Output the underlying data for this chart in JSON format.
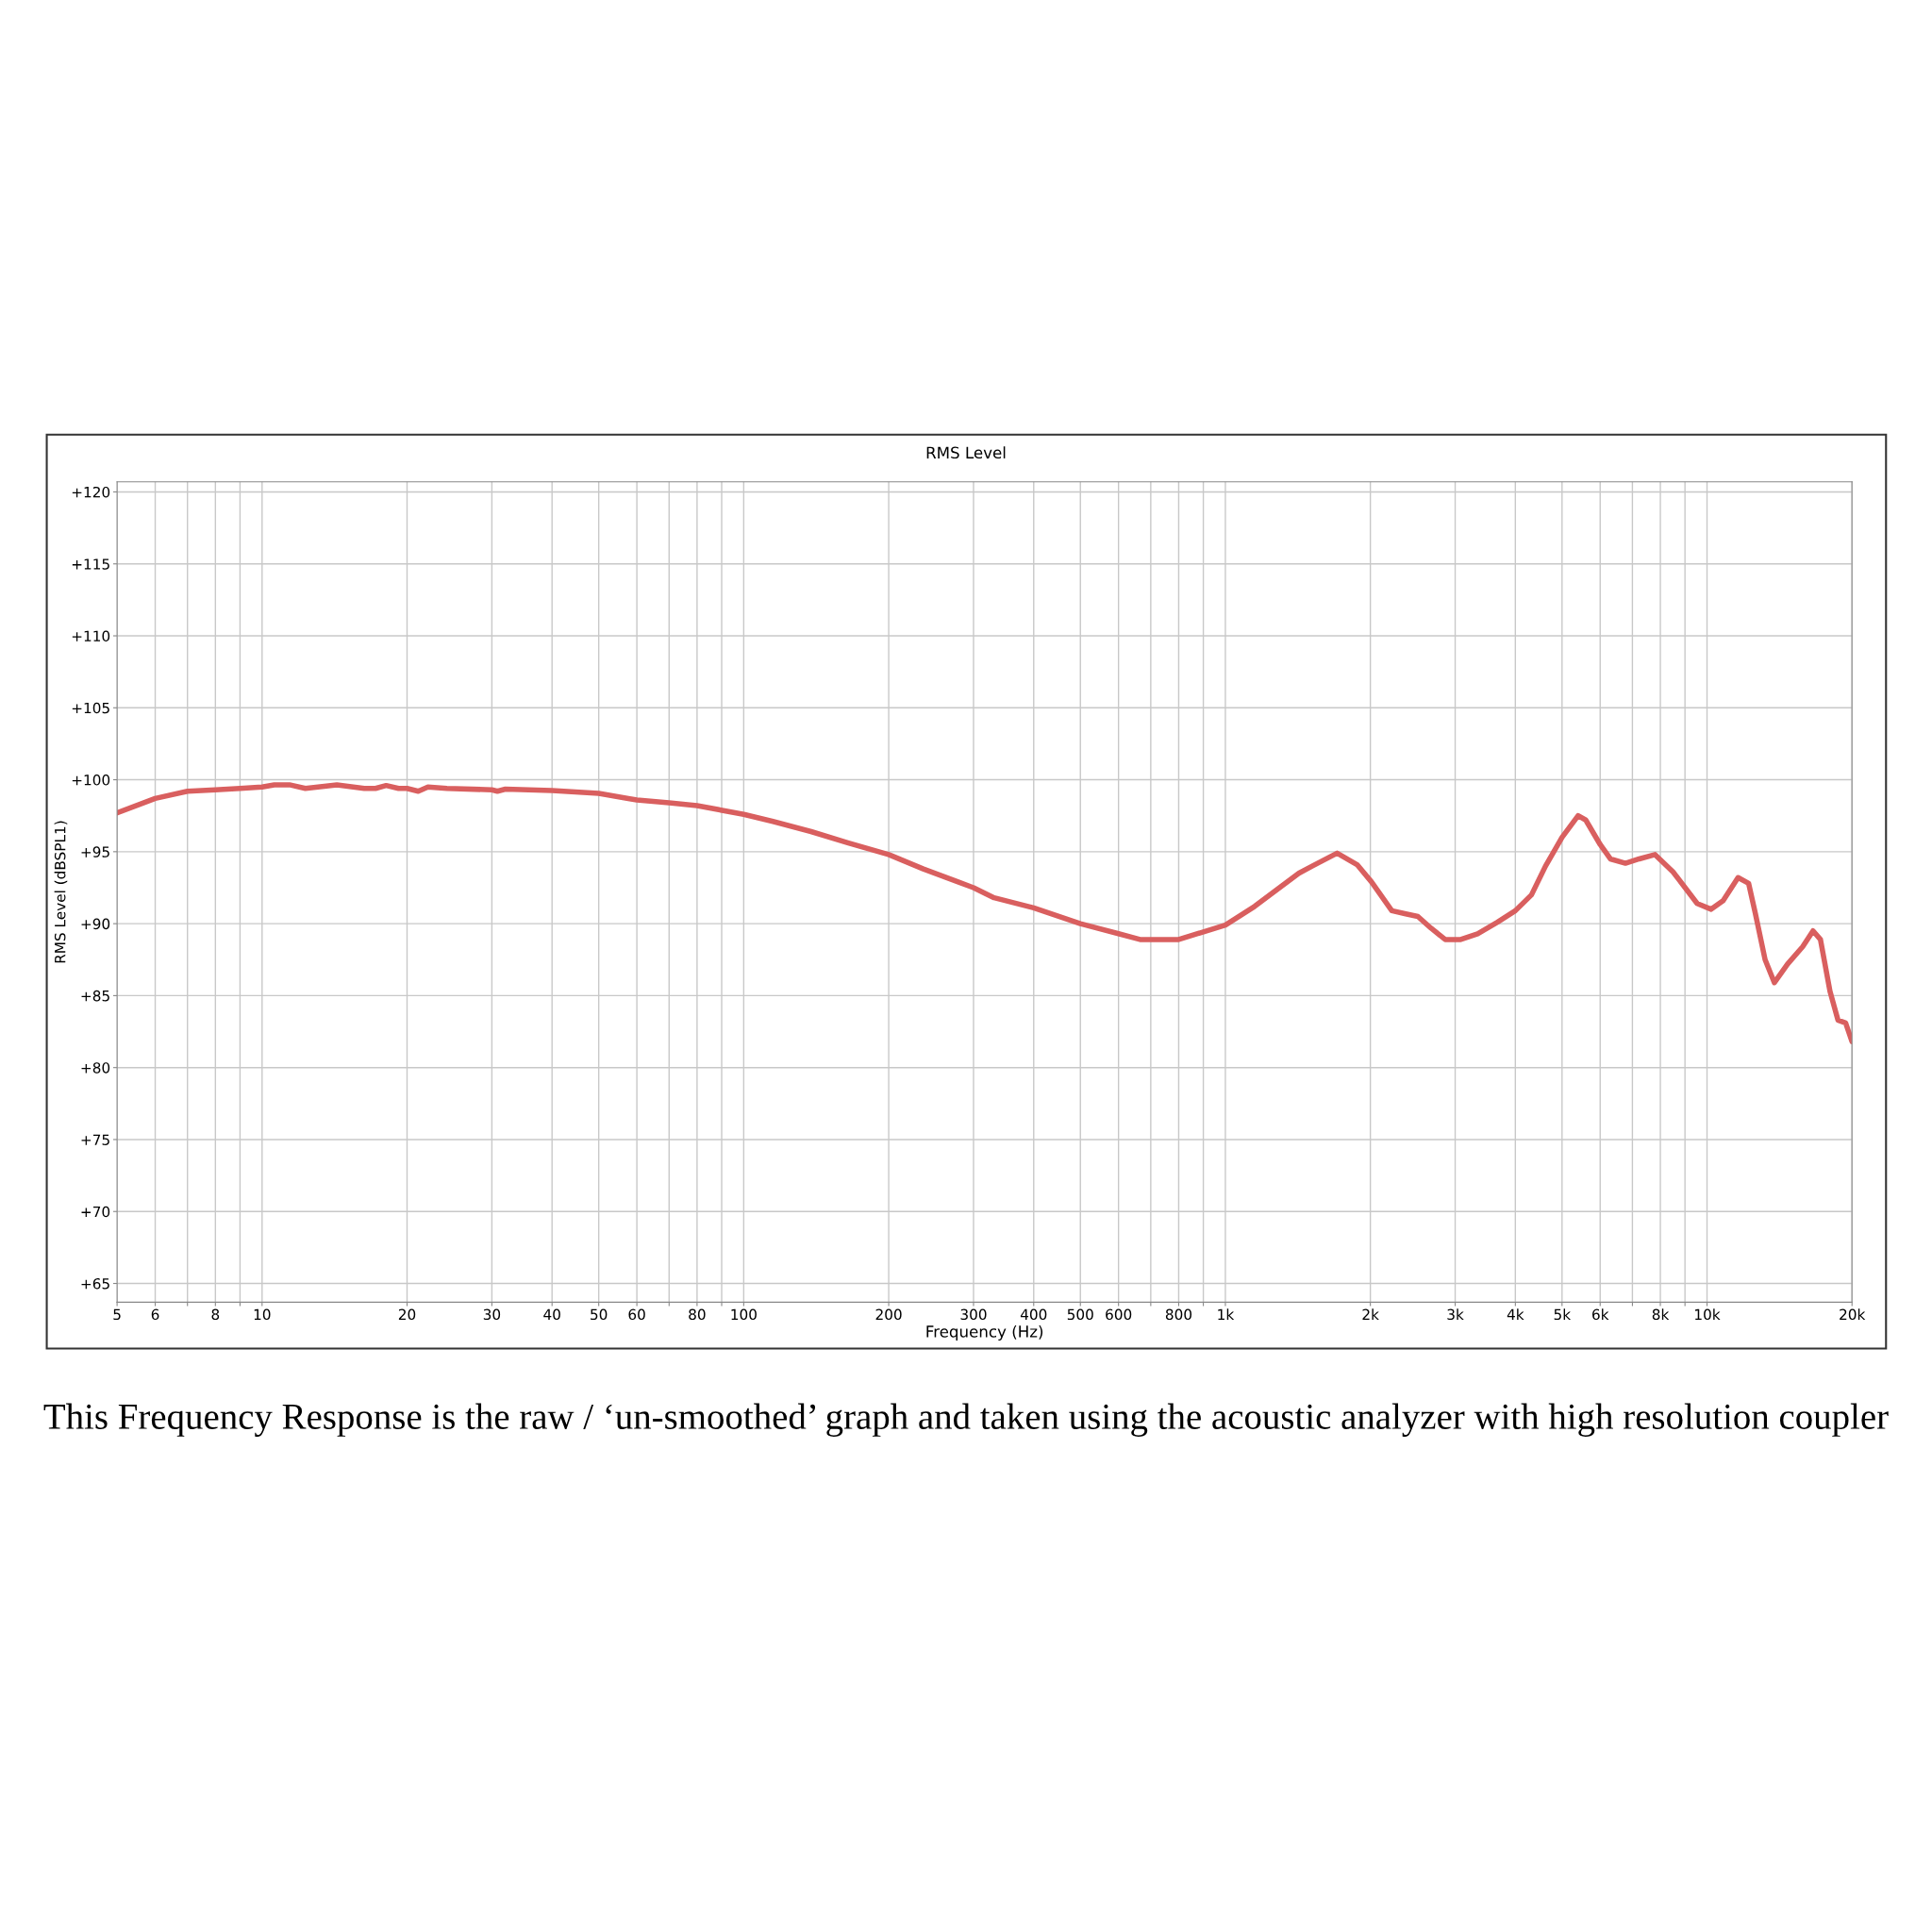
{
  "chart_data": {
    "type": "line",
    "title": "RMS Level",
    "xlabel": "Frequency (Hz)",
    "ylabel": "RMS Level (dBSPL1)",
    "log": "x",
    "grid": true,
    "legend": false,
    "marker": "none",
    "line_style": "solid",
    "xlim": [
      5,
      20000
    ],
    "ylim": [
      63.7,
      120.7
    ],
    "xticks": [
      5,
      6,
      {
        "value": 7,
        "label": null
      },
      8,
      {
        "value": 9,
        "label": null
      },
      10,
      20,
      30,
      40,
      50,
      60,
      {
        "value": 70,
        "label": null
      },
      80,
      {
        "value": 90,
        "label": null
      },
      100,
      200,
      300,
      400,
      500,
      600,
      {
        "value": 700,
        "label": null
      },
      800,
      {
        "value": 900,
        "label": null
      },
      {
        "value": 1000,
        "label": "1k"
      },
      {
        "value": 2000,
        "label": "2k"
      },
      {
        "value": 3000,
        "label": "3k"
      },
      {
        "value": 4000,
        "label": "4k"
      },
      {
        "value": 5000,
        "label": "5k"
      },
      {
        "value": 6000,
        "label": "6k"
      },
      {
        "value": 7000,
        "label": null
      },
      {
        "value": 8000,
        "label": "8k"
      },
      {
        "value": 9000,
        "label": null
      },
      {
        "value": 10000,
        "label": "10k"
      },
      {
        "value": 20000,
        "label": "20k"
      }
    ],
    "yticks": [
      {
        "value": 65,
        "label": "+65"
      },
      {
        "value": 70,
        "label": "+70"
      },
      {
        "value": 75,
        "label": "+75"
      },
      {
        "value": 80,
        "label": "+80"
      },
      {
        "value": 85,
        "label": "+85"
      },
      {
        "value": 90,
        "label": "+90"
      },
      {
        "value": 95,
        "label": "+95"
      },
      {
        "value": 100,
        "label": "+100"
      },
      {
        "value": 105,
        "label": "+105"
      },
      {
        "value": 110,
        "label": "+110"
      },
      {
        "value": 115,
        "label": "+115"
      },
      {
        "value": 120,
        "label": "+120"
      }
    ],
    "annotations": [
      "This Frequency Response is the raw / ‘un-smoothed’ graph and taken using the acoustic analyzer with high resolution coupler"
    ],
    "series": [
      {
        "color": "#d95f5f",
        "x": [
          5,
          6,
          7,
          8,
          9,
          10,
          10.6,
          11.4,
          12.3,
          14.3,
          16.3,
          17.2,
          18.1,
          19.2,
          20,
          21.1,
          22.1,
          24.2,
          30,
          30.8,
          32,
          40,
          50,
          57.6,
          60,
          70,
          80,
          100,
          115,
          138,
          165,
          200,
          236,
          300,
          331,
          400,
          500,
          600,
          665,
          800,
          1000,
          1150,
          1420,
          1514,
          1706,
          1877,
          2011,
          2216,
          2357,
          2510,
          2670,
          2860,
          3080,
          3340,
          3670,
          4000,
          4320,
          4620,
          5000,
          5400,
          5600,
          6000,
          6300,
          6770,
          7230,
          7800,
          8500,
          9540,
          10200,
          10800,
          11600,
          12200,
          12600,
          13200,
          13800,
          14700,
          15800,
          16600,
          17200,
          18000,
          18700,
          19400,
          20000
        ],
        "values": [
          97.7,
          98.7,
          99.2,
          99.3,
          99.4,
          99.5,
          99.65,
          99.65,
          99.4,
          99.65,
          99.4,
          99.4,
          99.6,
          99.4,
          99.4,
          99.2,
          99.5,
          99.4,
          99.3,
          99.2,
          99.35,
          99.25,
          99.05,
          98.7,
          98.6,
          98.4,
          98.2,
          97.6,
          97.1,
          96.4,
          95.6,
          94.8,
          93.8,
          92.5,
          91.8,
          91.1,
          90.0,
          89.3,
          88.9,
          88.9,
          89.9,
          91.2,
          93.5,
          94.0,
          94.9,
          94.1,
          92.9,
          90.9,
          90.7,
          90.5,
          89.7,
          88.9,
          88.9,
          89.3,
          90.1,
          90.9,
          92.0,
          94.0,
          96.0,
          97.5,
          97.2,
          95.5,
          94.5,
          94.2,
          94.5,
          94.8,
          93.6,
          91.4,
          91.0,
          91.6,
          93.2,
          92.8,
          90.7,
          87.5,
          85.9,
          87.2,
          88.4,
          89.5,
          88.9,
          85.3,
          83.3,
          83.1,
          81.8
        ]
      }
    ]
  }
}
